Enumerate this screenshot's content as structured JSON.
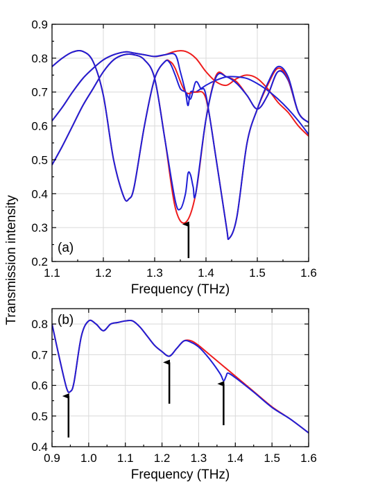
{
  "ylabel": "Transmission intensity",
  "colors": {
    "red": "#ee1c1c",
    "blue": "#1f1fd6",
    "arrow": "#000000"
  },
  "chart_data": [
    {
      "panel": "(a)",
      "type": "line",
      "xlabel": "Frequency (THz)",
      "xlim": [
        1.1,
        1.6
      ],
      "ylim": [
        0.2,
        0.9
      ],
      "xticks": [
        "1.1",
        "1.2",
        "1.3",
        "1.4",
        "1.5",
        "1.6"
      ],
      "yticks": [
        "0.2",
        "0.3",
        "0.4",
        "0.5",
        "0.6",
        "0.7",
        "0.8",
        "0.9"
      ],
      "grid": true,
      "arrows": [
        {
          "x": 1.366,
          "y_tip": 0.31,
          "y_tail": 0.21
        }
      ],
      "series": [
        {
          "color": "red",
          "x": [
            1.1,
            1.12,
            1.14,
            1.16,
            1.18,
            1.2,
            1.22,
            1.24,
            1.25,
            1.26,
            1.28,
            1.3,
            1.32,
            1.34,
            1.36,
            1.38,
            1.4,
            1.42,
            1.44,
            1.46,
            1.48,
            1.5,
            1.52,
            1.54,
            1.56,
            1.58,
            1.6
          ],
          "y": [
            0.615,
            0.655,
            0.7,
            0.74,
            0.77,
            0.795,
            0.81,
            0.818,
            0.818,
            0.815,
            0.81,
            0.805,
            0.81,
            0.82,
            0.82,
            0.8,
            0.76,
            0.73,
            0.72,
            0.74,
            0.75,
            0.74,
            0.71,
            0.67,
            0.64,
            0.6,
            0.57
          ]
        },
        {
          "color": "blue",
          "x": [
            1.1,
            1.12,
            1.14,
            1.16,
            1.18,
            1.2,
            1.22,
            1.24,
            1.25,
            1.26,
            1.28,
            1.3,
            1.32,
            1.34,
            1.35,
            1.36,
            1.365,
            1.37,
            1.38,
            1.4,
            1.42,
            1.44,
            1.46,
            1.48,
            1.5,
            1.52,
            1.54,
            1.56,
            1.58,
            1.6
          ],
          "y": [
            0.615,
            0.655,
            0.7,
            0.74,
            0.77,
            0.795,
            0.81,
            0.818,
            0.818,
            0.815,
            0.81,
            0.805,
            0.81,
            0.81,
            0.76,
            0.7,
            0.66,
            0.7,
            0.7,
            0.72,
            0.735,
            0.745,
            0.745,
            0.74,
            0.725,
            0.705,
            0.68,
            0.65,
            0.615,
            0.575
          ]
        },
        {
          "color": "red",
          "x": [
            1.1,
            1.12,
            1.14,
            1.16,
            1.18,
            1.2,
            1.22,
            1.24,
            1.26,
            1.28,
            1.3,
            1.32,
            1.34,
            1.36,
            1.38,
            1.4,
            1.42,
            1.44,
            1.46,
            1.48,
            1.5,
            1.52,
            1.54,
            1.56,
            1.58,
            1.6
          ],
          "y": [
            0.485,
            0.54,
            0.6,
            0.66,
            0.71,
            0.76,
            0.795,
            0.81,
            0.81,
            0.795,
            0.74,
            0.56,
            0.36,
            0.315,
            0.4,
            0.62,
            0.75,
            0.745,
            0.73,
            0.69,
            0.65,
            0.69,
            0.76,
            0.74,
            0.64,
            0.61
          ]
        },
        {
          "color": "blue",
          "x": [
            1.1,
            1.12,
            1.14,
            1.16,
            1.18,
            1.2,
            1.22,
            1.24,
            1.26,
            1.28,
            1.3,
            1.32,
            1.34,
            1.35,
            1.36,
            1.365,
            1.37,
            1.375,
            1.38,
            1.4,
            1.42,
            1.44,
            1.46,
            1.48,
            1.5,
            1.52,
            1.54,
            1.56,
            1.58,
            1.6
          ],
          "y": [
            0.485,
            0.54,
            0.6,
            0.66,
            0.71,
            0.76,
            0.795,
            0.81,
            0.81,
            0.795,
            0.74,
            0.56,
            0.38,
            0.355,
            0.4,
            0.46,
            0.455,
            0.42,
            0.4,
            0.62,
            0.745,
            0.745,
            0.725,
            0.69,
            0.65,
            0.69,
            0.76,
            0.735,
            0.64,
            0.61
          ]
        },
        {
          "color": "red",
          "x": [
            1.1,
            1.12,
            1.14,
            1.16,
            1.18,
            1.2,
            1.22,
            1.24,
            1.25,
            1.26,
            1.28,
            1.3,
            1.32,
            1.33,
            1.34,
            1.36,
            1.38,
            1.4,
            1.42,
            1.44,
            1.445,
            1.46,
            1.48,
            1.5,
            1.52,
            1.54,
            1.56,
            1.58,
            1.6
          ],
          "y": [
            0.775,
            0.8,
            0.818,
            0.82,
            0.79,
            0.69,
            0.5,
            0.39,
            0.385,
            0.42,
            0.6,
            0.74,
            0.79,
            0.79,
            0.77,
            0.7,
            0.7,
            0.68,
            0.5,
            0.3,
            0.268,
            0.33,
            0.55,
            0.65,
            0.72,
            0.77,
            0.74,
            0.64,
            0.61
          ]
        },
        {
          "color": "blue",
          "x": [
            1.1,
            1.12,
            1.14,
            1.16,
            1.18,
            1.2,
            1.22,
            1.24,
            1.25,
            1.26,
            1.28,
            1.3,
            1.32,
            1.33,
            1.34,
            1.35,
            1.36,
            1.37,
            1.38,
            1.39,
            1.4,
            1.42,
            1.44,
            1.445,
            1.46,
            1.48,
            1.5,
            1.52,
            1.54,
            1.56,
            1.58,
            1.6
          ],
          "y": [
            0.775,
            0.8,
            0.818,
            0.82,
            0.79,
            0.69,
            0.5,
            0.39,
            0.385,
            0.42,
            0.6,
            0.74,
            0.79,
            0.785,
            0.75,
            0.71,
            0.7,
            0.68,
            0.73,
            0.71,
            0.69,
            0.5,
            0.3,
            0.268,
            0.33,
            0.55,
            0.65,
            0.725,
            0.775,
            0.745,
            0.64,
            0.61
          ]
        }
      ]
    },
    {
      "panel": "(b)",
      "type": "line",
      "xlabel": "Frequency (THz)",
      "xlim": [
        0.9,
        1.6
      ],
      "ylim": [
        0.4,
        0.85
      ],
      "xticks": [
        "0.9",
        "1.0",
        "1.1",
        "1.2",
        "1.3",
        "1.4",
        "1.5",
        "1.6"
      ],
      "yticks": [
        "0.4",
        "0.5",
        "0.6",
        "0.7",
        "0.8"
      ],
      "grid": true,
      "arrows": [
        {
          "x": 0.945,
          "y_tip": 0.565,
          "y_tail": 0.43
        },
        {
          "x": 1.22,
          "y_tip": 0.675,
          "y_tail": 0.54
        },
        {
          "x": 1.368,
          "y_tip": 0.605,
          "y_tail": 0.47
        }
      ],
      "series": [
        {
          "color": "red",
          "x": [
            0.9,
            0.92,
            0.94,
            0.95,
            0.96,
            0.98,
            1.0,
            1.02,
            1.04,
            1.06,
            1.08,
            1.1,
            1.12,
            1.14,
            1.16,
            1.18,
            1.2,
            1.22,
            1.24,
            1.26,
            1.28,
            1.3,
            1.32,
            1.34,
            1.36,
            1.38,
            1.4,
            1.45,
            1.5,
            1.55,
            1.6
          ],
          "y": [
            0.8,
            0.69,
            0.59,
            0.58,
            0.61,
            0.76,
            0.81,
            0.8,
            0.778,
            0.8,
            0.805,
            0.81,
            0.81,
            0.79,
            0.76,
            0.73,
            0.71,
            0.695,
            0.72,
            0.745,
            0.745,
            0.73,
            0.71,
            0.69,
            0.67,
            0.65,
            0.63,
            0.58,
            0.53,
            0.49,
            0.445
          ]
        },
        {
          "color": "blue",
          "x": [
            0.9,
            0.92,
            0.94,
            0.95,
            0.96,
            0.98,
            1.0,
            1.02,
            1.04,
            1.06,
            1.08,
            1.1,
            1.12,
            1.14,
            1.16,
            1.18,
            1.2,
            1.22,
            1.24,
            1.26,
            1.28,
            1.3,
            1.32,
            1.34,
            1.36,
            1.368,
            1.375,
            1.38,
            1.4,
            1.45,
            1.5,
            1.55,
            1.6
          ],
          "y": [
            0.8,
            0.69,
            0.59,
            0.58,
            0.61,
            0.76,
            0.81,
            0.8,
            0.778,
            0.8,
            0.805,
            0.81,
            0.81,
            0.79,
            0.76,
            0.73,
            0.71,
            0.695,
            0.72,
            0.745,
            0.74,
            0.725,
            0.7,
            0.67,
            0.635,
            0.615,
            0.63,
            0.64,
            0.625,
            0.578,
            0.528,
            0.49,
            0.445
          ]
        }
      ]
    }
  ]
}
